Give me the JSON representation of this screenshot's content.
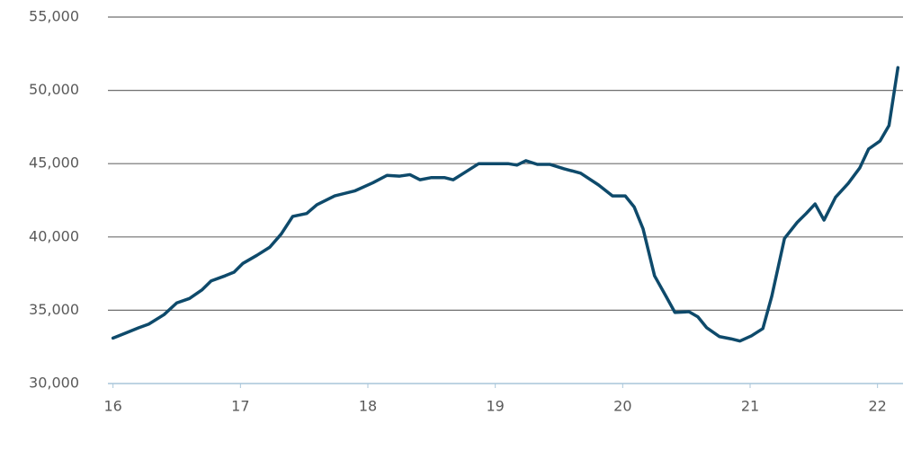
{
  "chart_data": {
    "type": "line",
    "color": "#0e4a6b",
    "grid": true,
    "xlim": [
      15.96,
      22.2
    ],
    "xticks": [
      16,
      17,
      18,
      19,
      20,
      21,
      22
    ],
    "ylim": [
      30000,
      55000
    ],
    "yticks": [
      {
        "value": 30000,
        "label": "30,000"
      },
      {
        "value": 35000,
        "label": "35,000"
      },
      {
        "value": 40000,
        "label": "40,000"
      },
      {
        "value": 45000,
        "label": "45,000"
      },
      {
        "value": 50000,
        "label": "50,000"
      },
      {
        "value": 55000,
        "label": "55,000"
      }
    ],
    "x": [
      16.0,
      16.1,
      16.2,
      16.28,
      16.4,
      16.5,
      16.6,
      16.7,
      16.77,
      16.88,
      16.95,
      17.02,
      17.13,
      17.23,
      17.32,
      17.41,
      17.52,
      17.6,
      17.74,
      17.9,
      18.04,
      18.15,
      18.25,
      18.33,
      18.41,
      18.5,
      18.6,
      18.67,
      18.77,
      18.87,
      19.0,
      19.1,
      19.17,
      19.24,
      19.33,
      19.43,
      19.54,
      19.67,
      19.81,
      19.92,
      20.02,
      20.09,
      20.16,
      20.25,
      20.34,
      20.41,
      20.52,
      20.59,
      20.66,
      20.76,
      20.85,
      20.92,
      21.01,
      21.1,
      21.17,
      21.27,
      21.37,
      21.44,
      21.51,
      21.58,
      21.67,
      21.77,
      21.86,
      21.93,
      22.02,
      22.09,
      22.16
    ],
    "values": [
      33100,
      33450,
      33800,
      34050,
      34700,
      35500,
      35800,
      36400,
      37000,
      37350,
      37600,
      38200,
      38750,
      39300,
      40200,
      41400,
      41600,
      42200,
      42800,
      43150,
      43700,
      44200,
      44150,
      44250,
      43900,
      44050,
      44050,
      43900,
      44450,
      45000,
      45000,
      45000,
      44900,
      45200,
      44950,
      44950,
      44650,
      44350,
      43550,
      42800,
      42800,
      42050,
      40550,
      37350,
      35950,
      34850,
      34900,
      34550,
      33800,
      33200,
      33050,
      32900,
      33250,
      33750,
      35950,
      39900,
      41000,
      41600,
      42250,
      41150,
      42700,
      43650,
      44700,
      46000,
      46550,
      47600,
      51550
    ]
  }
}
